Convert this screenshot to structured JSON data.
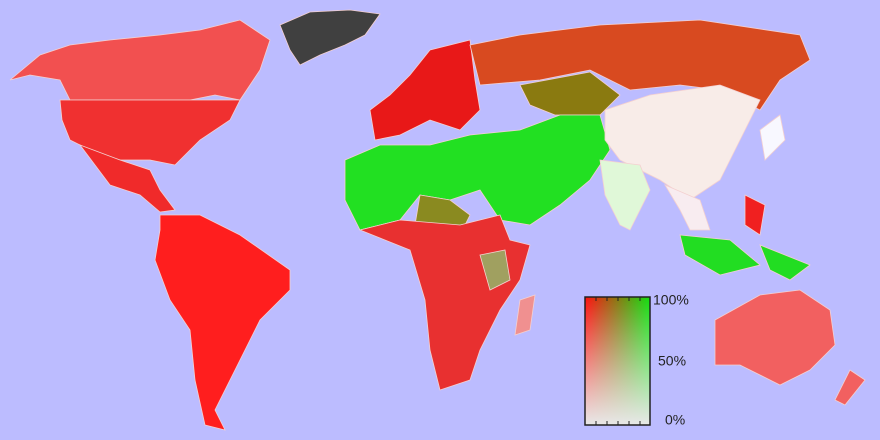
{
  "legend": {
    "labels": [
      "100%",
      "50%",
      "0%"
    ]
  }
}
